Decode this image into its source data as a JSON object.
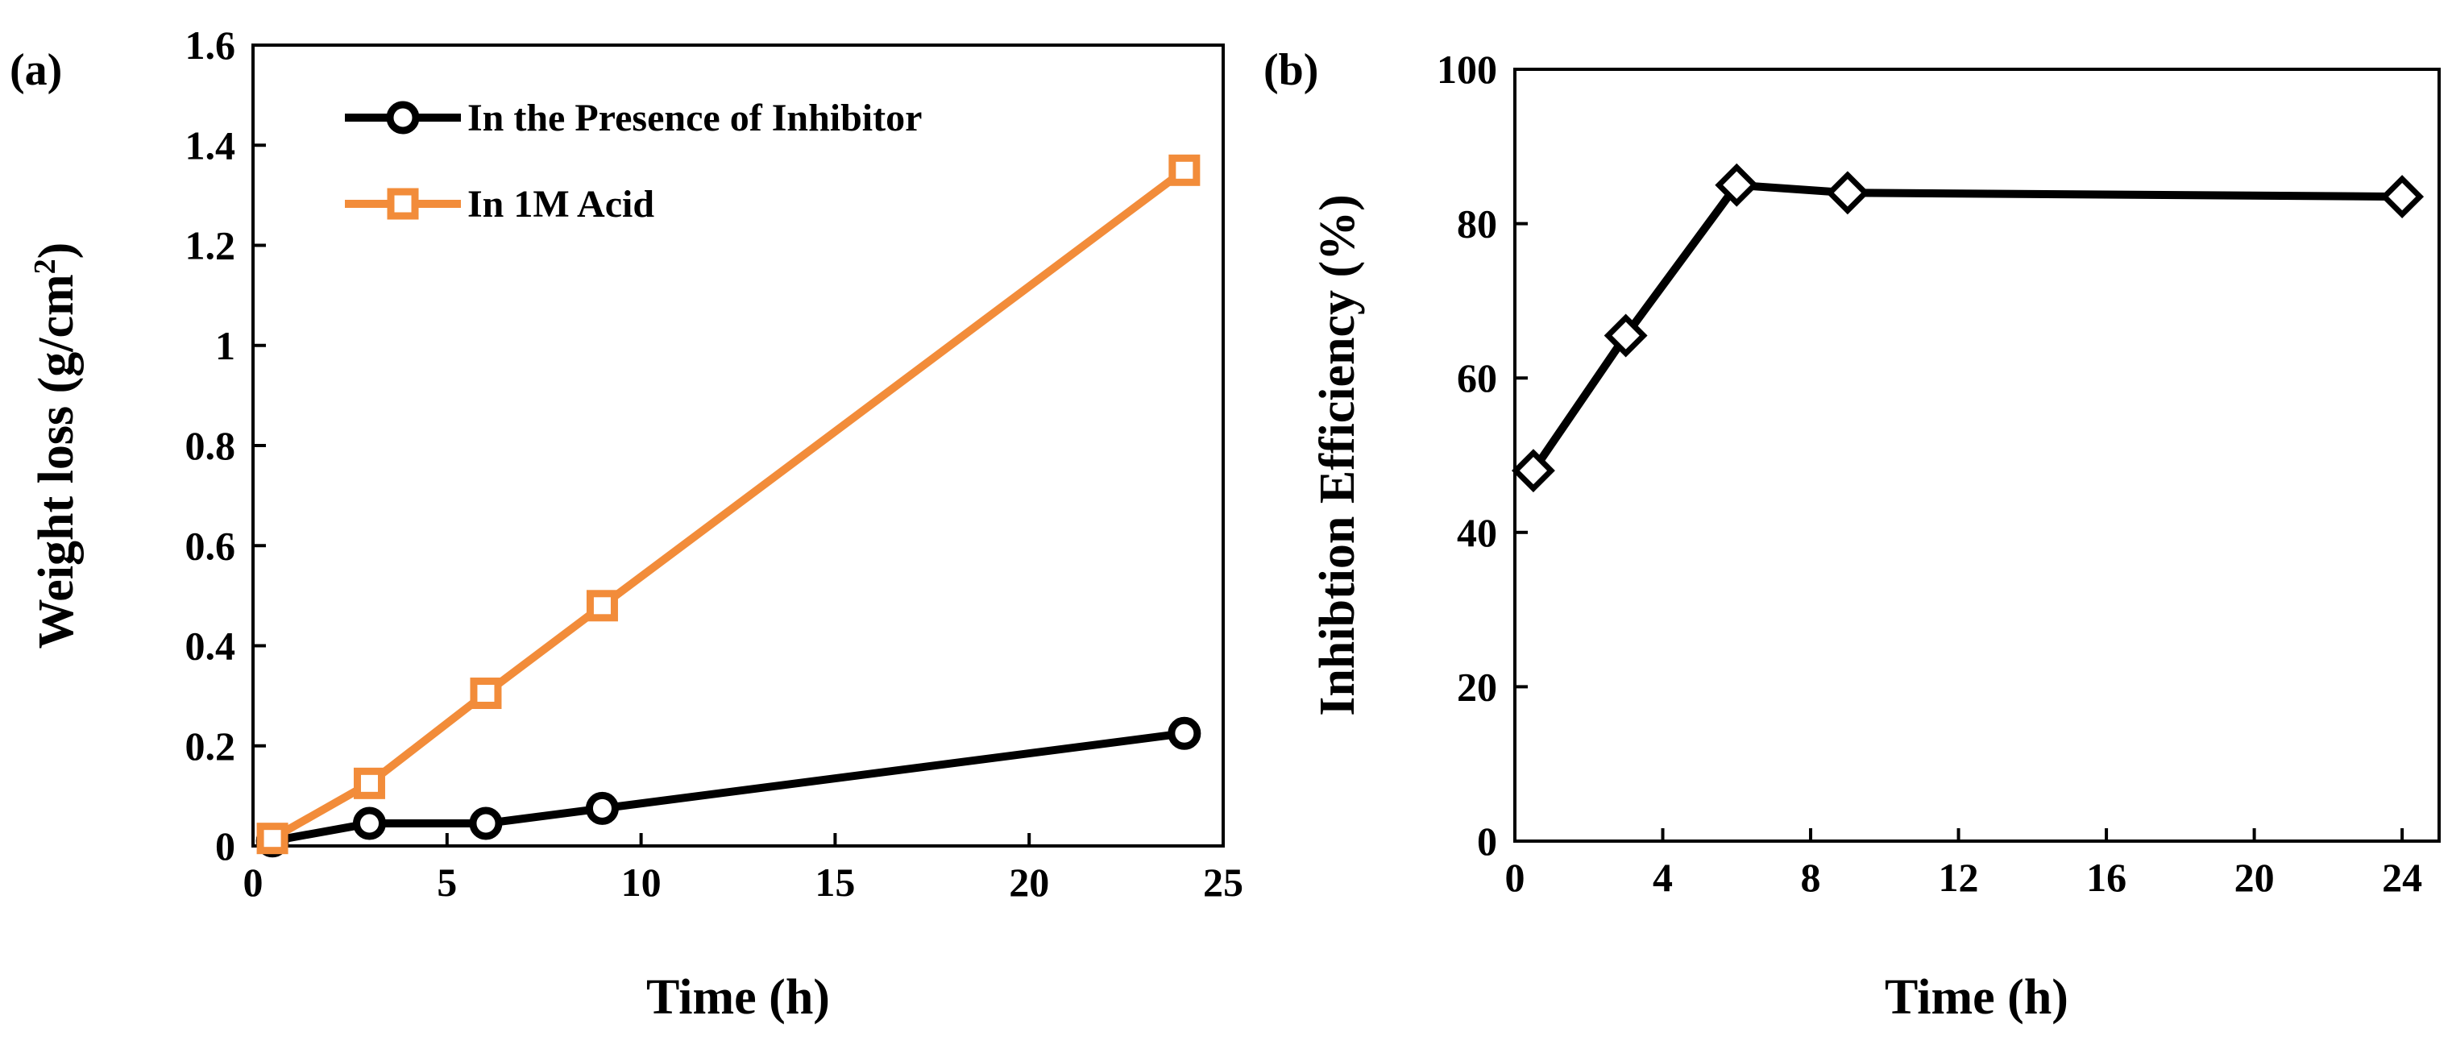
{
  "chart_data": [
    {
      "panel_label": "(a)",
      "type": "line",
      "xlabel": "Time (h)",
      "ylabel": "Weight loss (g/cm",
      "ylabel_sup": "2",
      "ylabel_tail": ")",
      "xlim": [
        0,
        25
      ],
      "ylim": [
        0,
        1.6
      ],
      "xticks": [
        0,
        5,
        10,
        15,
        20,
        25
      ],
      "xtick_labels": [
        "0",
        "5",
        "10",
        "15",
        "20",
        "25"
      ],
      "yticks": [
        0,
        0.2,
        0.4,
        0.6,
        0.8,
        1.0,
        1.2,
        1.4,
        1.6
      ],
      "ytick_labels": [
        "0",
        "0.2",
        "0.4",
        "0.6",
        "0.8",
        "1",
        "1.2",
        "1.4",
        "1.6"
      ],
      "legend_position": "top-left",
      "grid": false,
      "series": [
        {
          "name": "In the Presence of Inhibitor",
          "color": "#000000",
          "marker": "circle",
          "x": [
            0.5,
            3,
            6,
            9,
            24
          ],
          "values": [
            0.01,
            0.045,
            0.045,
            0.075,
            0.225
          ]
        },
        {
          "name": "In 1M Acid",
          "color": "#f28c3a",
          "marker": "square",
          "x": [
            0.5,
            3,
            6,
            9,
            24
          ],
          "values": [
            0.015,
            0.125,
            0.305,
            0.48,
            1.35
          ]
        }
      ]
    },
    {
      "panel_label": "(b)",
      "type": "line",
      "xlabel": "Time (h)",
      "ylabel": "Inhibtion Efficiency (%)",
      "xlim": [
        0,
        25
      ],
      "ylim": [
        0,
        100
      ],
      "xticks": [
        0,
        4,
        8,
        12,
        16,
        20,
        24
      ],
      "xtick_labels": [
        "0",
        "4",
        "8",
        "12",
        "16",
        "20",
        "24"
      ],
      "yticks": [
        0,
        20,
        40,
        60,
        80,
        100
      ],
      "ytick_labels": [
        "0",
        "20",
        "40",
        "60",
        "80",
        "100"
      ],
      "grid": false,
      "series": [
        {
          "name": "Inhibition Efficiency",
          "color": "#000000",
          "marker": "diamond",
          "x": [
            0.5,
            3,
            6,
            9,
            24
          ],
          "values": [
            48,
            65.5,
            85,
            84,
            83.5
          ]
        }
      ]
    }
  ]
}
